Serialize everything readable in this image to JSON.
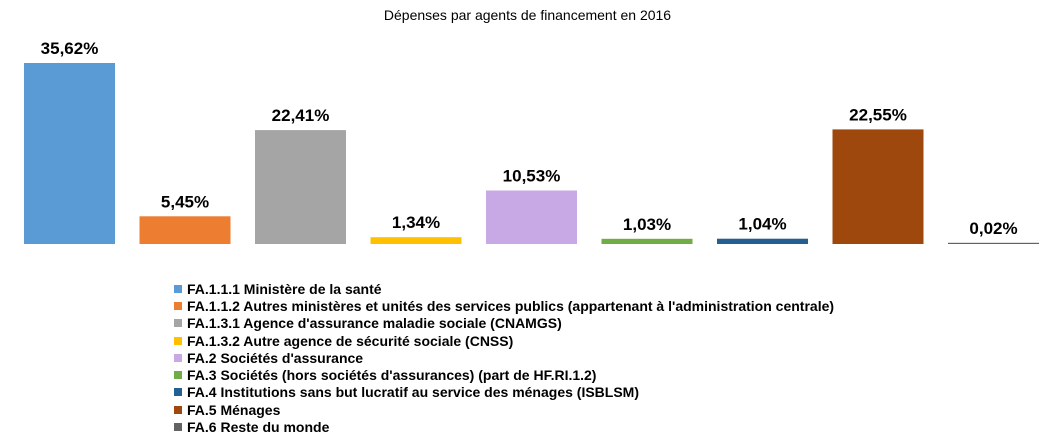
{
  "chart_data": {
    "type": "bar",
    "title": "Dépenses par agents de financement en 2016",
    "xlabel": "",
    "ylabel": "",
    "ylim": [
      0,
      35.62
    ],
    "grid": false,
    "legend_position": "bottom",
    "categories": [
      "FA.1.1.1 Ministère de la santé",
      "FA.1.1.2 Autres ministères et unités des services publics (appartenant à l'administration centrale)",
      "FA.1.3.1 Agence d'assurance maladie sociale (CNAMGS)",
      "FA.1.3.2 Autre agence de sécurité sociale (CNSS)",
      "FA.2 Sociétés d'assurance",
      "FA.3 Sociétés (hors sociétés d'assurances) (part de HF.RI.1.2)",
      "FA.4 Institutions sans but lucratif au service des ménages (ISBLSM)",
      "FA.5 Ménages",
      "FA.6 Reste du monde"
    ],
    "values": [
      35.62,
      5.45,
      22.41,
      1.34,
      10.53,
      1.03,
      1.04,
      22.55,
      0.02
    ],
    "value_labels": [
      "35,62%",
      "5,45%",
      "22,41%",
      "1,34%",
      "10,53%",
      "1,03%",
      "1,04%",
      "22,55%",
      "0,02%"
    ],
    "colors": [
      "#5B9BD5",
      "#ED7D31",
      "#A5A5A5",
      "#FFC000",
      "#C9A8E6",
      "#70AD47",
      "#255E91",
      "#9E480E",
      "#636363"
    ]
  }
}
